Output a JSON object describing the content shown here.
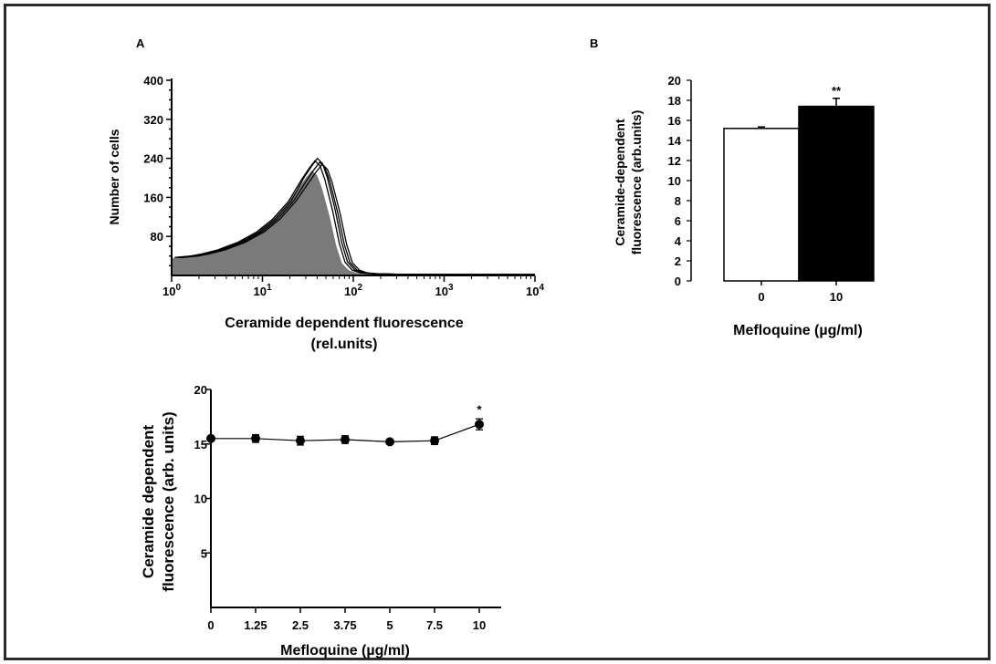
{
  "panels": {
    "a": "A",
    "b": "B"
  },
  "histogram": {
    "chart_data": {
      "type": "area",
      "title": "",
      "xlabel_line1": "Ceramide dependent fluorescence",
      "xlabel_line2": "(rel.units)",
      "ylabel": "Number of cells",
      "xscale": "log",
      "xlim": [
        1,
        10000
      ],
      "ylim": [
        0,
        400
      ],
      "xticks": [
        1,
        10,
        100,
        1000,
        10000
      ],
      "yticks": [
        80,
        160,
        240,
        320,
        400
      ],
      "ytick_labels": [
        "80",
        "160",
        "240",
        "320",
        "400"
      ],
      "filled_series": {
        "x": [
          1,
          1.5,
          2,
          3,
          5,
          8,
          12,
          18,
          25,
          30,
          35,
          40,
          45,
          55,
          65,
          75,
          90,
          110,
          150,
          300,
          1000,
          10000
        ],
        "y": [
          35,
          38,
          42,
          50,
          65,
          85,
          110,
          145,
          180,
          200,
          215,
          205,
          180,
          120,
          60,
          25,
          10,
          5,
          3,
          2,
          1,
          0
        ]
      },
      "outline_series": [
        {
          "shift": 1.08,
          "peak": 235
        },
        {
          "shift": 1.15,
          "peak": 240
        },
        {
          "shift": 1.22,
          "peak": 232
        },
        {
          "shift": 1.3,
          "peak": 228
        }
      ],
      "colors": {
        "fill": "#7a7a7a",
        "outline": "#000000"
      }
    }
  },
  "bar_b": {
    "chart_data": {
      "type": "bar",
      "categories": [
        "0",
        "10"
      ],
      "values": [
        15.2,
        17.4
      ],
      "errors": [
        0.15,
        0.8
      ],
      "significance": [
        "",
        "**"
      ],
      "xlabel": "Mefloquine (µg/ml)",
      "ylabel_line1": "Ceramide-dependent",
      "ylabel_line2": "fluorescence (arb.units)",
      "ylim": [
        0,
        20
      ],
      "yticks": [
        0,
        2,
        4,
        6,
        8,
        10,
        12,
        14,
        16,
        18,
        20
      ],
      "colors": {
        "0": "#ffffff",
        "10": "#000000"
      }
    }
  },
  "line_c": {
    "chart_data": {
      "type": "line",
      "x": [
        "0",
        "1.25",
        "2.5",
        "3.75",
        "5",
        "7.5",
        "10"
      ],
      "y": [
        15.5,
        15.5,
        15.3,
        15.4,
        15.2,
        15.3,
        16.8
      ],
      "errors": [
        0.2,
        0.35,
        0.4,
        0.35,
        0.15,
        0.35,
        0.5
      ],
      "significance": [
        "",
        "",
        "",
        "",
        "",
        "",
        "*"
      ],
      "xlabel": "Mefloquine (µg/ml)",
      "ylabel_line1": "Ceramide dependent",
      "ylabel_line2": "fluorescence (arb. units)",
      "ylim": [
        0,
        20
      ],
      "yticks": [
        5,
        10,
        15,
        20
      ]
    }
  }
}
